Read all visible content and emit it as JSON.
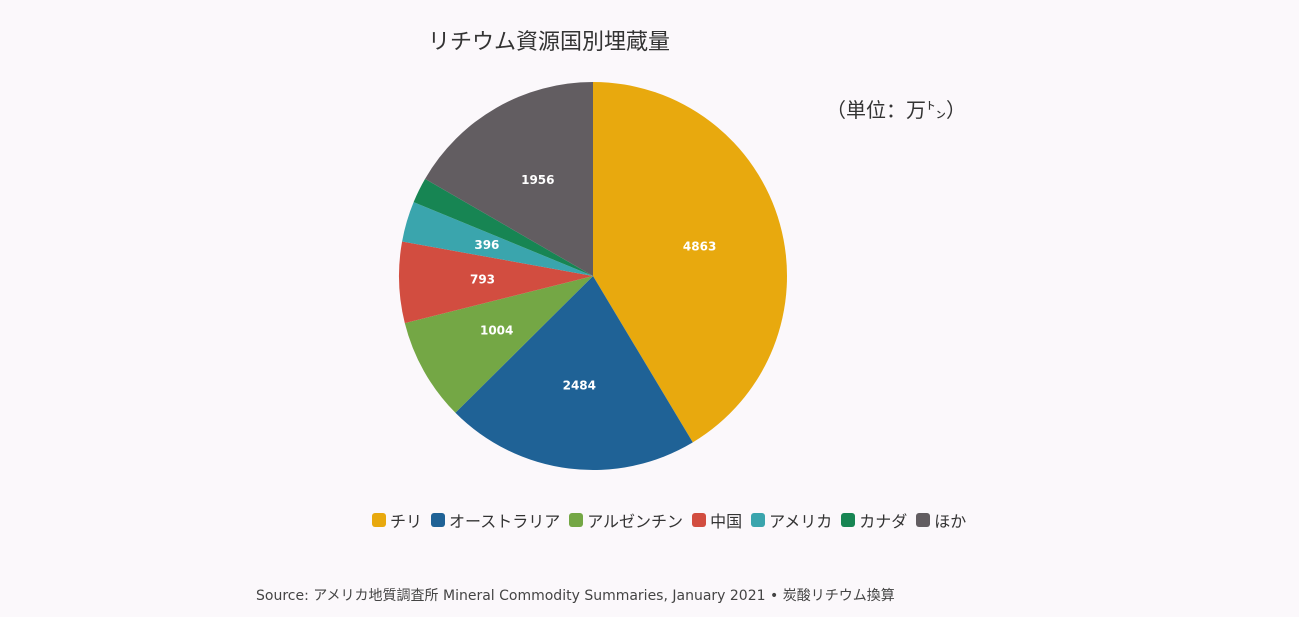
{
  "chart_data": {
    "type": "pie",
    "title": "リチウム資源国別埋蔵量",
    "unit": "（単位：万㌧）",
    "categories": [
      "チリ",
      "オーストラリア",
      "アルゼンチン",
      "中国",
      "アメリカ",
      "カナダ",
      "ほか"
    ],
    "values": [
      4863,
      2484,
      1004,
      793,
      396,
      250,
      1956
    ],
    "value_labels": [
      "4863",
      "2484",
      "1004",
      "793",
      "396",
      "",
      "1956"
    ],
    "colors": [
      "#e8a90e",
      "#1f6296",
      "#74a745",
      "#d24d40",
      "#3aa5ad",
      "#178553",
      "#625d61"
    ],
    "legend_position": "bottom",
    "source": "Source: アメリカ地質調査所 Mineral Commodity Summaries, January 2021 • 炭酸リチウム換算"
  }
}
